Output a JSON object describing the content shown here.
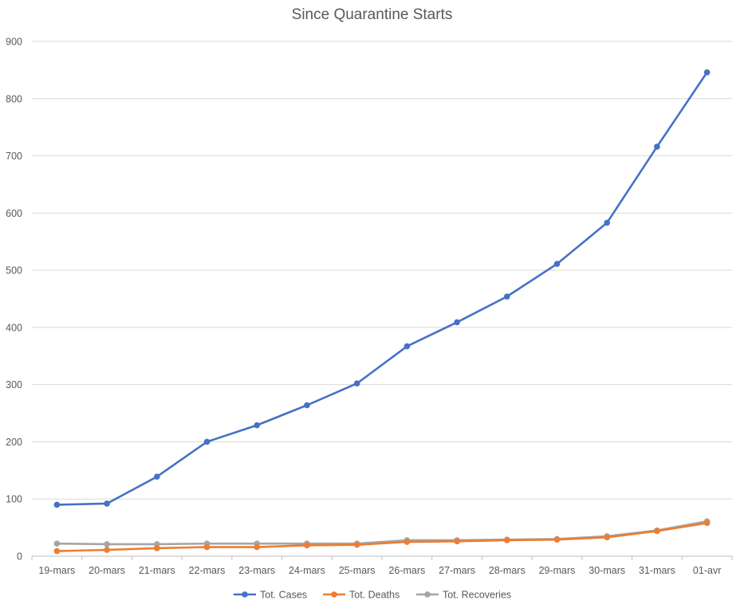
{
  "chart_data": {
    "type": "line",
    "title": "Since Quarantine Starts",
    "xlabel": "",
    "ylabel": "",
    "categories": [
      "19-mars",
      "20-mars",
      "21-mars",
      "22-mars",
      "23-mars",
      "24-mars",
      "25-mars",
      "26-mars",
      "27-mars",
      "28-mars",
      "29-mars",
      "30-mars",
      "31-mars",
      "01-avr"
    ],
    "ylim": [
      0,
      900
    ],
    "yticks": [
      0,
      100,
      200,
      300,
      400,
      500,
      600,
      700,
      800,
      900
    ],
    "grid": true,
    "legend_position": "bottom",
    "series": [
      {
        "name": "Tot. Cases",
        "color": "#4472C4",
        "values": [
          90,
          92,
          139,
          200,
          229,
          264,
          302,
          367,
          409,
          454,
          511,
          583,
          716,
          846
        ]
      },
      {
        "name": "Tot. Deaths",
        "color": "#ED7D31",
        "values": [
          9,
          11,
          14,
          16,
          16,
          19,
          20,
          25,
          26,
          28,
          29,
          33,
          44,
          58
        ]
      },
      {
        "name": "Tot. Recoveries",
        "color": "#A5A5A5",
        "values": [
          22,
          21,
          21,
          22,
          22,
          22,
          22,
          28,
          28,
          29,
          30,
          35,
          45,
          61
        ]
      }
    ]
  }
}
